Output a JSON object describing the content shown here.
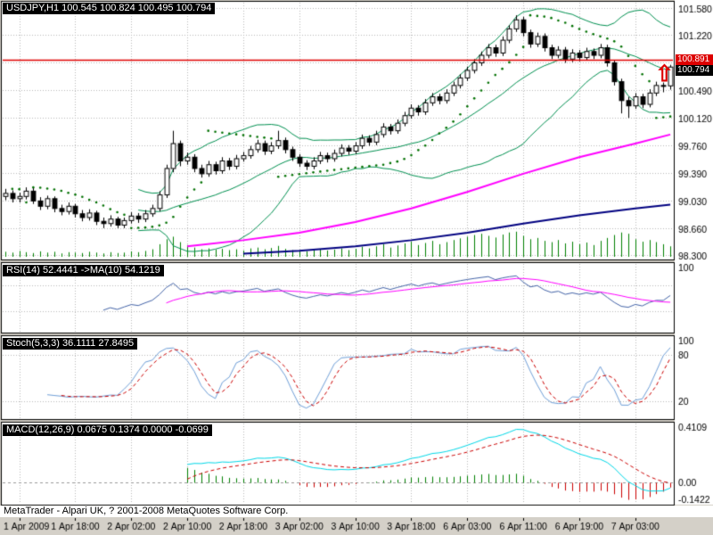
{
  "window": {
    "status_bar_text": "MetaTrader - Alpari UK, ? 2001-2008 MetaQuotes Software Corp."
  },
  "main_panel": {
    "symbol_label": "USDJPY,H1 100.545 100.824 100.495 100.794",
    "hline_tag": "100.891",
    "current_price_tag": "100.794",
    "arrow_glyph": "⇧"
  },
  "indicator_labels": {
    "rsi": "RSI(14) 52.4441 ->MA(10) 54.1219",
    "stoch": "Stoch(5,3,3) 36.1111 27.8495",
    "macd": "MACD(12,26,9) 0.0675 0.1374 0.0000 -0.0699"
  },
  "chart_data": {
    "type": "candlestick",
    "title": "USDJPY,H1",
    "symbol": "USDJPY",
    "timeframe": "H1",
    "current_ohlc": {
      "open": 100.545,
      "high": 100.824,
      "low": 100.495,
      "close": 100.794
    },
    "horizontal_line": 100.891,
    "time_labels": [
      "1 Apr 2009",
      "1 Apr 18:00",
      "2 Apr 02:00",
      "2 Apr 10:00",
      "2 Apr 18:00",
      "3 Apr 02:00",
      "3 Apr 10:00",
      "3 Apr 18:00",
      "6 Apr 03:00",
      "6 Apr 11:00",
      "6 Apr 19:00",
      "7 Apr 03:00"
    ],
    "label_bar_indices": [
      2,
      10,
      18,
      26,
      34,
      42,
      50,
      58,
      66,
      74,
      82,
      90
    ],
    "price_gridlines": [
      {
        "value": 101.58,
        "label": "101.580"
      },
      {
        "value": 101.22,
        "label": "101.220"
      },
      {
        "value": 100.86,
        "label": ""
      },
      {
        "value": 100.49,
        "label": "100.490"
      },
      {
        "value": 100.12,
        "label": "100.120"
      },
      {
        "value": 99.76,
        "label": "99.760"
      },
      {
        "value": 99.39,
        "label": "99.390"
      },
      {
        "value": 99.03,
        "label": "99.030"
      },
      {
        "value": 98.66,
        "label": "98.660"
      },
      {
        "value": 98.3,
        "label": "98.300"
      }
    ],
    "candles": [
      [
        99.08,
        99.18,
        99.03,
        99.12
      ],
      [
        99.12,
        99.16,
        99.0,
        99.05
      ],
      [
        99.05,
        99.13,
        99.0,
        99.08
      ],
      [
        99.08,
        99.2,
        99.04,
        99.15
      ],
      [
        99.15,
        99.19,
        98.98,
        99.02
      ],
      [
        99.02,
        99.07,
        98.9,
        98.95
      ],
      [
        98.95,
        99.09,
        98.91,
        99.05
      ],
      [
        99.05,
        99.08,
        98.87,
        98.92
      ],
      [
        98.92,
        98.97,
        98.83,
        98.88
      ],
      [
        98.88,
        99.0,
        98.84,
        98.95
      ],
      [
        98.95,
        98.98,
        98.8,
        98.85
      ],
      [
        98.85,
        98.9,
        98.75,
        98.8
      ],
      [
        98.8,
        98.91,
        98.76,
        98.86
      ],
      [
        98.86,
        98.89,
        98.7,
        98.75
      ],
      [
        98.75,
        98.8,
        98.66,
        98.72
      ],
      [
        98.72,
        98.83,
        98.68,
        98.78
      ],
      [
        98.78,
        98.81,
        98.66,
        98.7
      ],
      [
        98.7,
        98.8,
        98.66,
        98.76
      ],
      [
        98.76,
        98.87,
        98.72,
        98.82
      ],
      [
        98.82,
        98.86,
        98.73,
        98.78
      ],
      [
        98.78,
        98.9,
        98.74,
        98.85
      ],
      [
        98.85,
        98.97,
        98.81,
        98.92
      ],
      [
        98.92,
        99.15,
        98.88,
        99.1
      ],
      [
        99.1,
        99.5,
        99.06,
        99.45
      ],
      [
        99.45,
        99.95,
        99.4,
        99.78
      ],
      [
        99.78,
        99.82,
        99.48,
        99.55
      ],
      [
        99.55,
        99.66,
        99.5,
        99.6
      ],
      [
        99.6,
        99.64,
        99.4,
        99.45
      ],
      [
        99.45,
        99.5,
        99.33,
        99.38
      ],
      [
        99.38,
        99.55,
        99.34,
        99.5
      ],
      [
        99.5,
        99.54,
        99.37,
        99.42
      ],
      [
        99.42,
        99.6,
        99.38,
        99.55
      ],
      [
        99.55,
        99.59,
        99.43,
        99.48
      ],
      [
        99.48,
        99.63,
        99.44,
        99.58
      ],
      [
        99.58,
        99.67,
        99.54,
        99.62
      ],
      [
        99.62,
        99.75,
        99.58,
        99.7
      ],
      [
        99.7,
        99.83,
        99.66,
        99.78
      ],
      [
        99.78,
        99.82,
        99.63,
        99.68
      ],
      [
        99.68,
        99.8,
        99.64,
        99.75
      ],
      [
        99.75,
        99.95,
        99.71,
        99.82
      ],
      [
        99.82,
        99.86,
        99.65,
        99.7
      ],
      [
        99.7,
        99.74,
        99.55,
        99.6
      ],
      [
        99.6,
        99.64,
        99.47,
        99.52
      ],
      [
        99.52,
        99.56,
        99.43,
        99.48
      ],
      [
        99.48,
        99.6,
        99.44,
        99.55
      ],
      [
        99.55,
        99.67,
        99.51,
        99.62
      ],
      [
        99.62,
        99.66,
        99.53,
        99.58
      ],
      [
        99.58,
        99.7,
        99.54,
        99.65
      ],
      [
        99.65,
        99.77,
        99.61,
        99.72
      ],
      [
        99.72,
        99.76,
        99.63,
        99.68
      ],
      [
        99.68,
        99.8,
        99.64,
        99.75
      ],
      [
        99.75,
        99.9,
        99.71,
        99.85
      ],
      [
        99.85,
        99.89,
        99.75,
        99.8
      ],
      [
        99.8,
        99.95,
        99.76,
        99.9
      ],
      [
        99.9,
        100.05,
        99.86,
        100.0
      ],
      [
        100.0,
        100.04,
        99.9,
        99.95
      ],
      [
        99.95,
        100.1,
        99.91,
        100.05
      ],
      [
        100.05,
        100.2,
        100.01,
        100.15
      ],
      [
        100.15,
        100.3,
        100.11,
        100.25
      ],
      [
        100.25,
        100.29,
        100.15,
        100.2
      ],
      [
        100.2,
        100.37,
        100.16,
        100.32
      ],
      [
        100.32,
        100.45,
        100.28,
        100.4
      ],
      [
        100.4,
        100.44,
        100.3,
        100.35
      ],
      [
        100.35,
        100.5,
        100.31,
        100.45
      ],
      [
        100.45,
        100.6,
        100.41,
        100.55
      ],
      [
        100.55,
        100.7,
        100.51,
        100.65
      ],
      [
        100.65,
        100.8,
        100.61,
        100.75
      ],
      [
        100.75,
        100.9,
        100.71,
        100.85
      ],
      [
        100.85,
        101.0,
        100.81,
        100.95
      ],
      [
        100.95,
        101.1,
        100.91,
        101.05
      ],
      [
        101.05,
        101.09,
        100.93,
        100.98
      ],
      [
        100.98,
        101.2,
        100.94,
        101.15
      ],
      [
        101.15,
        101.35,
        101.11,
        101.3
      ],
      [
        101.3,
        101.48,
        101.26,
        101.42
      ],
      [
        101.42,
        101.46,
        101.2,
        101.25
      ],
      [
        101.25,
        101.29,
        101.05,
        101.1
      ],
      [
        101.1,
        101.25,
        101.06,
        101.2
      ],
      [
        101.2,
        101.24,
        101.0,
        101.05
      ],
      [
        101.05,
        101.09,
        100.9,
        100.95
      ],
      [
        100.95,
        101.07,
        100.91,
        101.02
      ],
      [
        101.02,
        101.06,
        100.85,
        100.9
      ],
      [
        100.9,
        101.03,
        100.86,
        100.98
      ],
      [
        100.98,
        101.02,
        100.87,
        100.92
      ],
      [
        100.92,
        101.05,
        100.88,
        101.0
      ],
      [
        101.0,
        101.04,
        100.9,
        100.95
      ],
      [
        100.95,
        101.1,
        100.91,
        101.05
      ],
      [
        101.05,
        101.09,
        100.8,
        100.85
      ],
      [
        100.85,
        100.89,
        100.55,
        100.6
      ],
      [
        100.6,
        100.64,
        100.18,
        100.35
      ],
      [
        100.35,
        100.4,
        100.12,
        100.28
      ],
      [
        100.28,
        100.45,
        100.24,
        100.4
      ],
      [
        100.4,
        100.44,
        100.25,
        100.3
      ],
      [
        100.3,
        100.5,
        100.26,
        100.45
      ],
      [
        100.45,
        100.6,
        100.41,
        100.55
      ],
      [
        100.55,
        100.59,
        100.46,
        100.545
      ],
      [
        100.545,
        100.824,
        100.495,
        100.794
      ]
    ],
    "volumes": [
      12,
      10,
      14,
      11,
      9,
      13,
      10,
      12,
      8,
      11,
      10,
      9,
      12,
      10,
      8,
      11,
      9,
      10,
      13,
      11,
      14,
      18,
      30,
      42,
      48,
      35,
      28,
      22,
      18,
      20,
      17,
      19,
      16,
      18,
      15,
      20,
      22,
      18,
      21,
      26,
      19,
      16,
      14,
      13,
      16,
      18,
      15,
      17,
      20,
      16,
      19,
      24,
      20,
      25,
      30,
      22,
      27,
      32,
      36,
      28,
      33,
      38,
      30,
      35,
      40,
      44,
      48,
      52,
      55,
      50,
      46,
      53,
      58,
      60,
      50,
      42,
      45,
      38,
      35,
      40,
      32,
      36,
      30,
      34,
      28,
      38,
      45,
      52,
      58,
      55,
      42,
      36,
      40,
      35,
      30,
      25
    ],
    "overlays": {
      "bollinger": {
        "period": 20,
        "deviation": 2,
        "color": "#009050"
      },
      "sar": {
        "step": 0.02,
        "max": 0.2,
        "color": "#007000"
      },
      "ma_magenta": {
        "color": "#ff00ff",
        "points": [
          [
            26,
            98.42
          ],
          [
            34,
            98.5
          ],
          [
            42,
            98.6
          ],
          [
            50,
            98.74
          ],
          [
            58,
            98.92
          ],
          [
            66,
            99.14
          ],
          [
            74,
            99.38
          ],
          [
            82,
            99.6
          ],
          [
            90,
            99.78
          ],
          [
            95,
            99.9
          ]
        ]
      },
      "ma_navy": {
        "color": "#000080",
        "points": [
          [
            34,
            98.32
          ],
          [
            42,
            98.36
          ],
          [
            50,
            98.42
          ],
          [
            58,
            98.5
          ],
          [
            66,
            98.6
          ],
          [
            74,
            98.72
          ],
          [
            82,
            98.83
          ],
          [
            90,
            98.92
          ],
          [
            95,
            98.97
          ]
        ]
      }
    },
    "rsi": {
      "period": 14,
      "ma_period": 10,
      "value": 52.4441,
      "ma_value": 54.1219,
      "range": [
        0,
        100
      ],
      "levels": [
        30,
        70
      ],
      "axis": [
        {
          "text": "100",
          "value": 100
        }
      ],
      "color": "#4464a8",
      "ma_color": "#ff00ff"
    },
    "stoch": {
      "k": 5,
      "d": 3,
      "slowing": 3,
      "value": 36.1111,
      "signal": 27.8495,
      "range": [
        0,
        100
      ],
      "levels": [
        20,
        80
      ],
      "axis": [
        {
          "text": "100",
          "value": 100
        },
        {
          "text": "80",
          "value": 80
        },
        {
          "text": "20",
          "value": 20
        }
      ],
      "k_color": "#6f9fd8",
      "d_color": "#cc0000"
    },
    "macd": {
      "fast": 12,
      "slow": 26,
      "signal": 9,
      "values": [
        0.0675,
        0.1374,
        0.0,
        -0.0699
      ],
      "range": [
        -0.1422,
        0.4109
      ],
      "axis": [
        {
          "text": "0.4109",
          "value": 0.4109
        },
        {
          "text": "0.00",
          "value": 0
        },
        {
          "text": "-0.1422",
          "value": -0.1422
        }
      ],
      "main_color": "#00d8e8",
      "signal_color": "#cc0000",
      "hist_up": "#008000",
      "hist_down": "#cc0000"
    },
    "colors": {
      "page_bg": "#d4d0c8",
      "panel_bg": "#ffffff",
      "grid": "#b8b8b8",
      "bull": "#ffffff",
      "bear": "#000000",
      "outline": "#000000",
      "volume": "#008000",
      "hline": "#e00000",
      "axis_text": "#000000"
    }
  }
}
